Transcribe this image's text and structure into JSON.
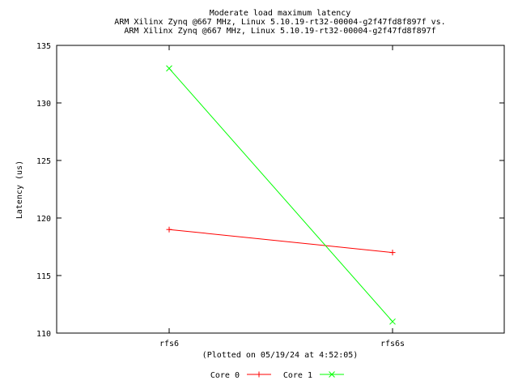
{
  "chart_data": {
    "type": "line",
    "title_lines": [
      "Moderate load maximum latency",
      "ARM Xilinx Zynq @667 MHz, Linux 5.10.19-rt32-00004-g2f47fd8f897f vs.",
      "ARM Xilinx Zynq @667 MHz, Linux 5.10.19-rt32-00004-g2f47fd8f897f"
    ],
    "xlabel": "(Plotted on 05/19/24 at 4:52:05)",
    "ylabel": "Latency (us)",
    "categories": [
      "rfs6",
      "rfs6s"
    ],
    "ylim": [
      110,
      135
    ],
    "yticks": [
      110,
      115,
      120,
      125,
      130,
      135
    ],
    "grid": false,
    "legend_position": "bottom-center",
    "series": [
      {
        "name": "Core 0",
        "values": [
          119,
          117
        ],
        "color": "#ff0000",
        "marker": "+"
      },
      {
        "name": "Core 1",
        "values": [
          133,
          111
        ],
        "color": "#00ff00",
        "marker": "x"
      }
    ]
  }
}
